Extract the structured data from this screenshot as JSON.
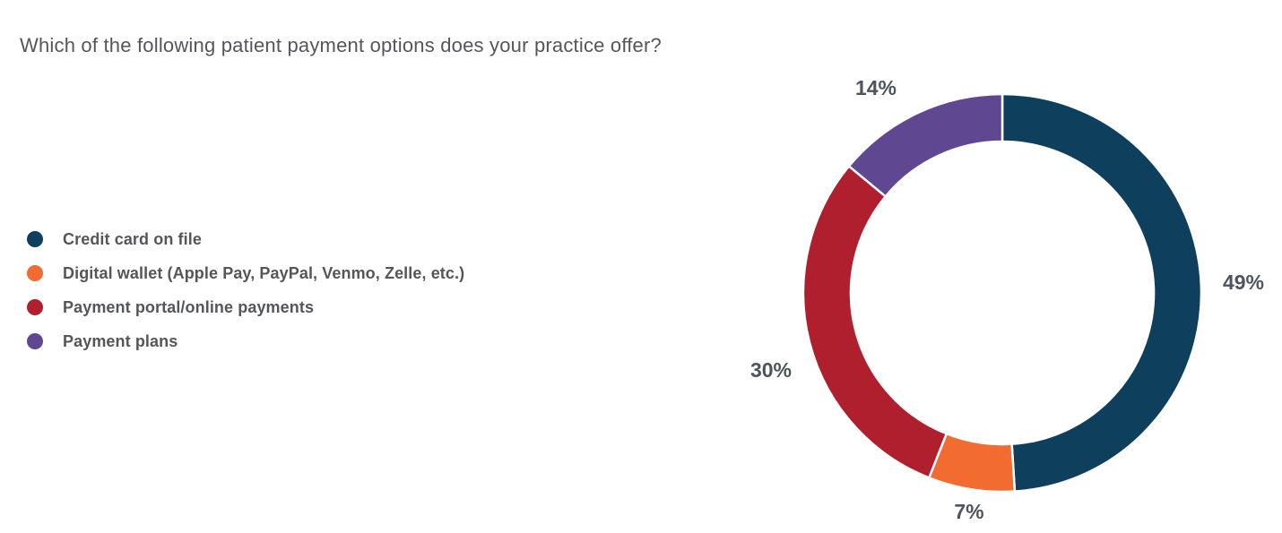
{
  "title": "Which of the following patient payment options does your practice offer?",
  "chart_data": {
    "type": "pie",
    "subtype": "donut",
    "title": "Which of the following patient payment options does your practice offer?",
    "unit": "%",
    "total": 100,
    "direction": "clockwise",
    "start_angle_deg": 0,
    "legend_position": "left",
    "hole_color": "#ffffff",
    "separator_color": "#ffffff",
    "label_text_color": "#4c555e",
    "categories": [
      "Credit card on file",
      "Digital wallet (Apple Pay, PayPal, Venmo, Zelle, etc.)",
      "Payment portal/online payments",
      "Payment plans"
    ],
    "values": [
      49,
      7,
      30,
      14
    ],
    "segments": [
      {
        "label": "Credit card on file",
        "value": 49,
        "value_label": "49%",
        "color": "#0e3f5c"
      },
      {
        "label": "Digital wallet (Apple Pay, PayPal, Venmo, Zelle, etc.)",
        "value": 7,
        "value_label": "7%",
        "color": "#f26b31"
      },
      {
        "label": "Payment portal/online payments",
        "value": 30,
        "value_label": "30%",
        "color": "#b01f2e"
      },
      {
        "label": "Payment plans",
        "value": 14,
        "value_label": "14%",
        "color": "#5f4791"
      }
    ]
  }
}
